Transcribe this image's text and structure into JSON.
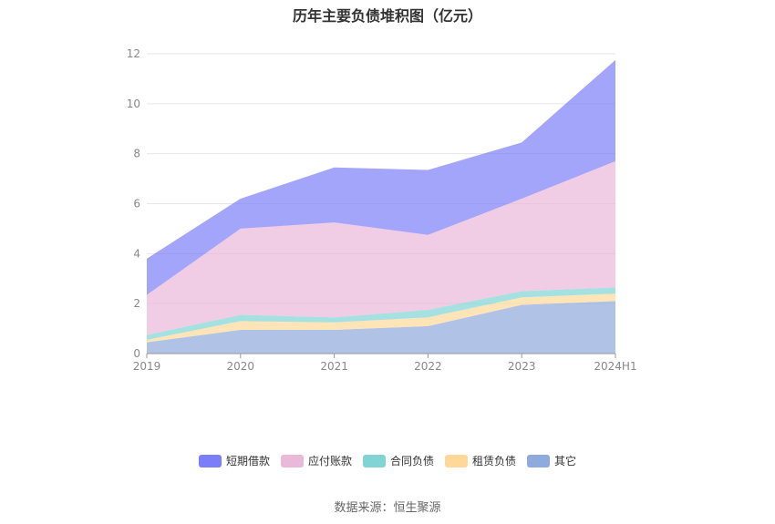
{
  "chart_data": {
    "type": "area",
    "title": "历年主要负债堆积图（亿元）",
    "categories": [
      "2019",
      "2020",
      "2021",
      "2022",
      "2023",
      "2024H1"
    ],
    "ylim": [
      0,
      12
    ],
    "yticks": [
      0,
      2,
      4,
      6,
      8,
      10,
      12
    ],
    "series": [
      {
        "name": "其它",
        "color": "#8faadc",
        "values": [
          0.45,
          0.95,
          0.95,
          1.1,
          1.95,
          2.1
        ]
      },
      {
        "name": "租赁负债",
        "color": "#ffd899",
        "values": [
          0.1,
          0.35,
          0.3,
          0.35,
          0.3,
          0.3
        ]
      },
      {
        "name": "合同负债",
        "color": "#80d4d6",
        "values": [
          0.2,
          0.25,
          0.2,
          0.3,
          0.25,
          0.25
        ]
      },
      {
        "name": "应付账款",
        "color": "#eab8d8",
        "values": [
          1.6,
          3.45,
          3.8,
          3.0,
          3.7,
          5.05
        ]
      },
      {
        "name": "短期借款",
        "color": "#7b7ff7",
        "values": [
          1.45,
          1.2,
          2.2,
          2.6,
          2.25,
          4.05
        ]
      }
    ],
    "legend_order": [
      "短期借款",
      "应付账款",
      "合同负债",
      "租赁负债",
      "其它"
    ],
    "grid": true,
    "legend_position": "bottom"
  },
  "source_text": "数据来源：恒生聚源"
}
